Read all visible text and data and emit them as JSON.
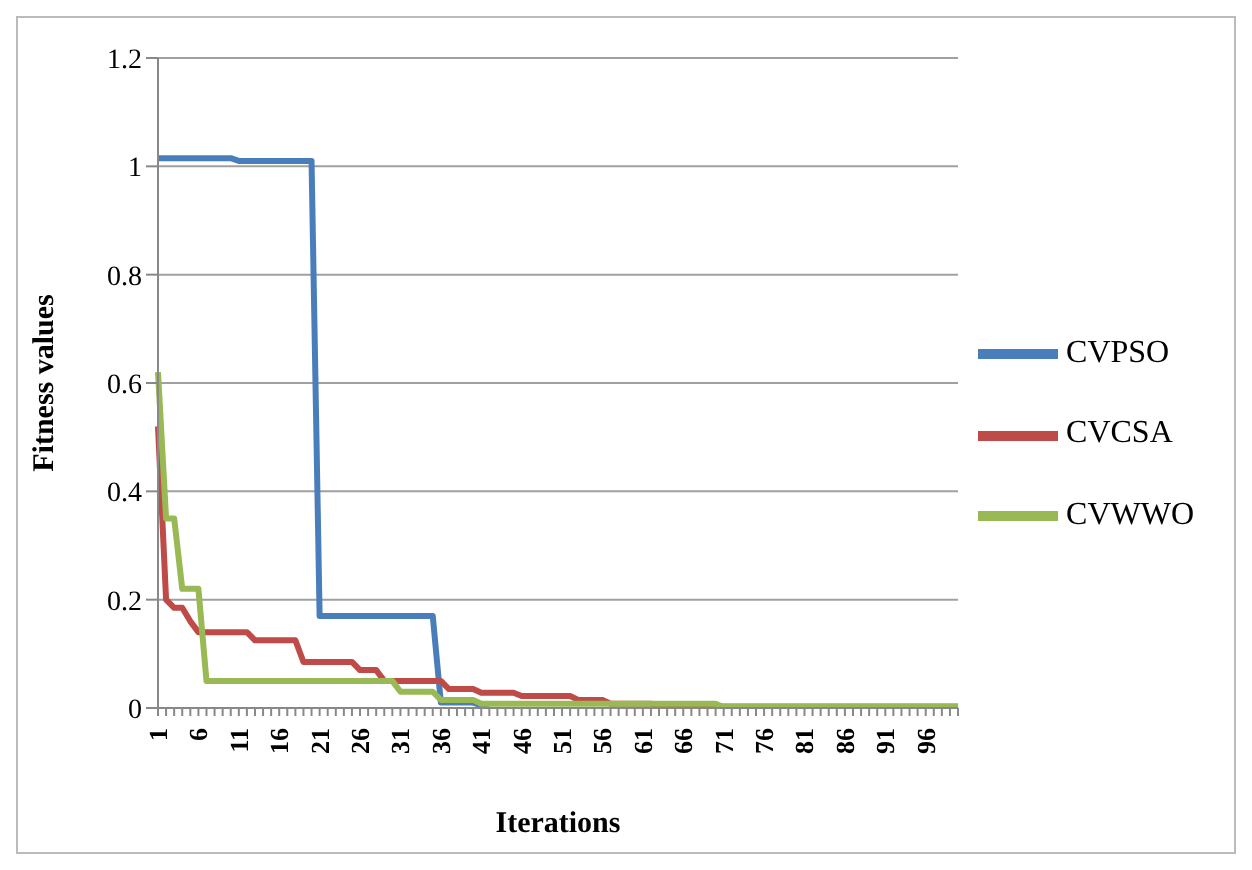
{
  "chart_data": {
    "type": "line",
    "xlabel": "Iterations",
    "ylabel": "Fitness values",
    "categories": [
      "1",
      null,
      null,
      null,
      null,
      "6",
      null,
      null,
      null,
      null,
      "11",
      null,
      null,
      null,
      null,
      "16",
      null,
      null,
      null,
      null,
      "21",
      null,
      null,
      null,
      null,
      "26",
      null,
      null,
      null,
      null,
      "31",
      null,
      null,
      null,
      null,
      "36",
      null,
      null,
      null,
      null,
      "41",
      null,
      null,
      null,
      null,
      "46",
      null,
      null,
      null,
      null,
      "51",
      null,
      null,
      null,
      null,
      "56",
      null,
      null,
      null,
      null,
      "61",
      null,
      null,
      null,
      null,
      "66",
      null,
      null,
      null,
      null,
      "71",
      null,
      null,
      null,
      null,
      "76",
      null,
      null,
      null,
      null,
      "81",
      null,
      null,
      null,
      null,
      "86",
      null,
      null,
      null,
      null,
      "91",
      null,
      null,
      null,
      null,
      "96",
      null,
      null,
      null,
      null
    ],
    "series": [
      {
        "name": "CVPSO",
        "color": "#4a7ebb",
        "values": [
          1.015,
          1.015,
          1.015,
          1.015,
          1.015,
          1.015,
          1.015,
          1.015,
          1.015,
          1.015,
          1.01,
          1.01,
          1.01,
          1.01,
          1.01,
          1.01,
          1.01,
          1.01,
          1.01,
          1.01,
          0.17,
          0.17,
          0.17,
          0.17,
          0.17,
          0.17,
          0.17,
          0.17,
          0.17,
          0.17,
          0.17,
          0.17,
          0.17,
          0.17,
          0.17,
          0.01,
          0.01,
          0.01,
          0.01,
          0.01,
          0.005,
          0.005,
          null,
          null,
          null,
          null,
          null,
          null,
          null,
          null,
          null,
          null,
          null,
          null,
          null,
          null,
          null,
          null,
          null,
          null,
          null,
          null,
          null,
          null,
          null,
          null,
          null,
          null,
          null,
          null,
          null,
          null,
          null,
          null,
          null,
          null,
          null,
          null,
          null,
          null,
          null,
          null,
          null,
          null,
          null,
          null,
          null,
          null,
          null,
          null,
          null,
          null,
          null,
          null,
          null,
          null,
          null,
          null,
          null,
          null
        ]
      },
      {
        "name": "CVCSA",
        "color": "#be4b48",
        "values": [
          0.52,
          0.2,
          0.185,
          0.185,
          0.16,
          0.14,
          0.14,
          0.14,
          0.14,
          0.14,
          0.14,
          0.14,
          0.125,
          0.125,
          0.125,
          0.125,
          0.125,
          0.125,
          0.085,
          0.085,
          0.085,
          0.085,
          0.085,
          0.085,
          0.085,
          0.07,
          0.07,
          0.07,
          0.05,
          0.05,
          0.05,
          0.05,
          0.05,
          0.05,
          0.05,
          0.05,
          0.035,
          0.035,
          0.035,
          0.035,
          0.028,
          0.028,
          0.028,
          0.028,
          0.028,
          0.022,
          0.022,
          0.022,
          0.022,
          0.022,
          0.022,
          0.022,
          0.015,
          0.015,
          0.015,
          0.015,
          0.008,
          0.008,
          0.008,
          0.008,
          0.008,
          0.008,
          0.003,
          0.003,
          0.003,
          0.003,
          0.003,
          0.003,
          0.003,
          0.003,
          0.003,
          0.003,
          0.003,
          0.003,
          0.003,
          0.003,
          0.003,
          0.003,
          0.003,
          0.003,
          0.003,
          0.003,
          0.003,
          0.003,
          0.003,
          0.003,
          0.003,
          0.003,
          0.003,
          0.003,
          0.003,
          0.003,
          0.003,
          0.003,
          0.003,
          0.003,
          0.003,
          0.003,
          0.003,
          0.003
        ]
      },
      {
        "name": "CVWWO",
        "color": "#98b954",
        "values": [
          0.62,
          0.35,
          0.35,
          0.22,
          0.22,
          0.22,
          0.05,
          0.05,
          0.05,
          0.05,
          0.05,
          0.05,
          0.05,
          0.05,
          0.05,
          0.05,
          0.05,
          0.05,
          0.05,
          0.05,
          0.05,
          0.05,
          0.05,
          0.05,
          0.05,
          0.05,
          0.05,
          0.05,
          0.05,
          0.05,
          0.03,
          0.03,
          0.03,
          0.03,
          0.03,
          0.015,
          0.015,
          0.015,
          0.015,
          0.015,
          0.008,
          0.008,
          0.008,
          0.008,
          0.008,
          0.008,
          0.008,
          0.008,
          0.008,
          0.008,
          0.008,
          0.008,
          0.008,
          0.008,
          0.008,
          0.008,
          0.008,
          0.008,
          0.008,
          0.008,
          0.008,
          0.008,
          0.008,
          0.008,
          0.008,
          0.008,
          0.008,
          0.008,
          0.008,
          0.008,
          0.002,
          0.002,
          0.002,
          0.002,
          0.002,
          0.002,
          0.002,
          0.002,
          0.002,
          0.002,
          0.002,
          0.002,
          0.002,
          0.002,
          0.002,
          0.002,
          0.002,
          0.002,
          0.002,
          0.002,
          0.002,
          0.002,
          0.002,
          0.002,
          0.002,
          0.002,
          0.002,
          0.002,
          0.002,
          0.002
        ]
      }
    ],
    "ylim": [
      0,
      1.2
    ],
    "yticks": [
      0,
      0.2,
      0.4,
      0.6,
      0.8,
      1,
      1.2
    ],
    "grid": "y",
    "legend": "right",
    "marker": "none",
    "line_style": "solid"
  }
}
